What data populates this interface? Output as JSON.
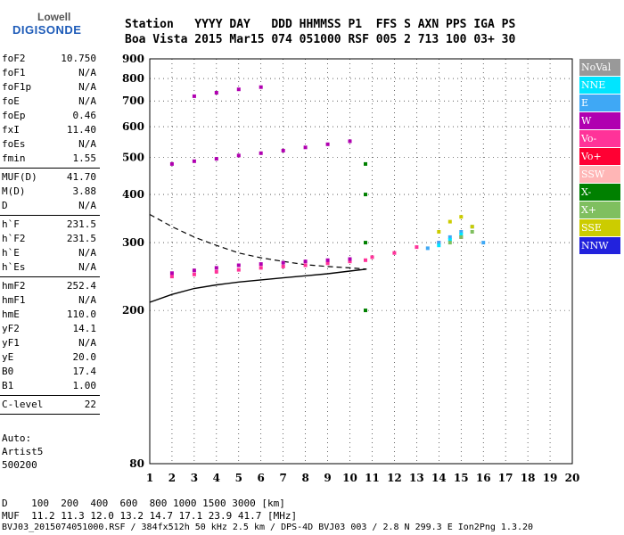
{
  "logo": {
    "top": "Lowell",
    "bottom": "DIGISONDE"
  },
  "header": {
    "line1": "Station   YYYY DAY   DDD HHMMSS P1  FFS S AXN PPS IGA PS",
    "line2": "Boa Vista 2015 Mar15 074 051000 RSF 005 2 713 100 03+ 30"
  },
  "params": [
    [
      [
        "foF2",
        "10.750"
      ],
      [
        "foF1",
        "N/A"
      ],
      [
        "foF1p",
        "N/A"
      ],
      [
        "foE",
        "N/A"
      ],
      [
        "foEp",
        "0.46"
      ],
      [
        "fxI",
        "11.40"
      ],
      [
        "foEs",
        "N/A"
      ],
      [
        "fmin",
        "1.55"
      ]
    ],
    [
      [
        "MUF(D)",
        "41.70"
      ],
      [
        "M(D)",
        "3.88"
      ],
      [
        "D",
        "N/A"
      ]
    ],
    [
      [
        "h`F",
        "231.5"
      ],
      [
        "h`F2",
        "231.5"
      ],
      [
        "h`E",
        "N/A"
      ],
      [
        "h`Es",
        "N/A"
      ]
    ],
    [
      [
        "hmF2",
        "252.4"
      ],
      [
        "hmF1",
        "N/A"
      ],
      [
        "hmE",
        "110.0"
      ],
      [
        "yF2",
        "14.1"
      ],
      [
        "yF1",
        "N/A"
      ],
      [
        "yE",
        "20.0"
      ],
      [
        "B0",
        "17.4"
      ],
      [
        "B1",
        "1.00"
      ]
    ],
    [
      [
        "C-level",
        "22"
      ]
    ]
  ],
  "auto": [
    "Auto:",
    "Artist5",
    "500200"
  ],
  "legend": [
    {
      "label": "NoVal",
      "color": "#999999"
    },
    {
      "label": "NNE",
      "color": "#00e5ff"
    },
    {
      "label": "E",
      "color": "#3fa8f5"
    },
    {
      "label": "W",
      "color": "#b000b0"
    },
    {
      "label": "Vo-",
      "color": "#ff3399"
    },
    {
      "label": "Vo+",
      "color": "#ff0033"
    },
    {
      "label": "SSW",
      "color": "#ffb6b6"
    },
    {
      "label": "X-",
      "color": "#008000"
    },
    {
      "label": "X+",
      "color": "#7fbf5f"
    },
    {
      "label": "SSE",
      "color": "#cccc00"
    },
    {
      "label": "NNW",
      "color": "#2222dd"
    }
  ],
  "footer": {
    "d_line": "D    100  200  400  600  800 1000 1500 3000 [km]",
    "muf_line": "MUF  11.2 11.3 12.0 13.2 14.7 17.1 23.9 41.7 [MHz]",
    "file_line": "BVJ03_2015074051000.RSF / 384fx512h 50 kHz 2.5 km / DPS-4D BVJ03 003 / 2.8 N 299.3 E Ion2Png 1.3.20"
  },
  "chart_data": {
    "type": "scatter",
    "xlim": [
      1,
      20
    ],
    "ylim": [
      80,
      900
    ],
    "y_scale": "log",
    "xticks": [
      1,
      2,
      3,
      4,
      5,
      6,
      7,
      8,
      9,
      10,
      11,
      12,
      13,
      14,
      15,
      16,
      17,
      18,
      19,
      20
    ],
    "yticks": [
      80,
      200,
      300,
      400,
      500,
      600,
      700,
      800,
      900
    ],
    "grid": true,
    "series": [
      {
        "color": "#ff3399",
        "points": [
          [
            2,
            245
          ],
          [
            3,
            248
          ],
          [
            4,
            252
          ],
          [
            5,
            255
          ],
          [
            6,
            258
          ],
          [
            7,
            260
          ],
          [
            8,
            262
          ],
          [
            9,
            265
          ],
          [
            10,
            268
          ],
          [
            10.7,
            270
          ],
          [
            11,
            275
          ],
          [
            12,
            282
          ],
          [
            13,
            292
          ],
          [
            14,
            300
          ],
          [
            15,
            310
          ]
        ]
      },
      {
        "color": "#b000b0",
        "points": [
          [
            2,
            250
          ],
          [
            3,
            254
          ],
          [
            4,
            258
          ],
          [
            5,
            262
          ],
          [
            6,
            264
          ],
          [
            7,
            266
          ],
          [
            8,
            268
          ],
          [
            9,
            270
          ],
          [
            10,
            272
          ],
          [
            2,
            480
          ],
          [
            3,
            488
          ],
          [
            4,
            495
          ],
          [
            5,
            505
          ],
          [
            6,
            512
          ],
          [
            7,
            520
          ],
          [
            8,
            530
          ],
          [
            9,
            540
          ],
          [
            10,
            550
          ],
          [
            3,
            720
          ],
          [
            4,
            735
          ],
          [
            5,
            750
          ],
          [
            6,
            760
          ]
        ]
      },
      {
        "color": "#3fa8f5",
        "points": [
          [
            13.5,
            290
          ],
          [
            14,
            300
          ],
          [
            14.5,
            310
          ],
          [
            15,
            320
          ],
          [
            15.5,
            330
          ],
          [
            16,
            300
          ]
        ]
      },
      {
        "color": "#00e5ff",
        "points": [
          [
            14,
            295
          ],
          [
            14.5,
            305
          ],
          [
            15,
            315
          ]
        ]
      },
      {
        "color": "#cccc00",
        "points": [
          [
            14,
            320
          ],
          [
            14.5,
            340
          ],
          [
            15,
            350
          ],
          [
            15.5,
            330
          ]
        ]
      },
      {
        "color": "#008000",
        "points": [
          [
            10.7,
            200
          ],
          [
            10.7,
            300
          ],
          [
            10.7,
            400
          ],
          [
            10.7,
            480
          ]
        ]
      },
      {
        "color": "#7fbf5f",
        "points": [
          [
            14.5,
            300
          ],
          [
            15,
            310
          ],
          [
            15.5,
            320
          ]
        ]
      }
    ],
    "profile_solid": [
      [
        1,
        210
      ],
      [
        2,
        220
      ],
      [
        3,
        228
      ],
      [
        4,
        233
      ],
      [
        5,
        237
      ],
      [
        6,
        240
      ],
      [
        7,
        243
      ],
      [
        8,
        246
      ],
      [
        9,
        249
      ],
      [
        10,
        253
      ],
      [
        10.75,
        256
      ]
    ],
    "profile_dashed": [
      [
        1,
        355
      ],
      [
        2,
        330
      ],
      [
        3,
        310
      ],
      [
        4,
        295
      ],
      [
        5,
        282
      ],
      [
        6,
        274
      ],
      [
        7,
        268
      ],
      [
        8,
        263
      ],
      [
        9,
        260
      ],
      [
        10,
        258
      ],
      [
        10.75,
        256
      ]
    ]
  }
}
